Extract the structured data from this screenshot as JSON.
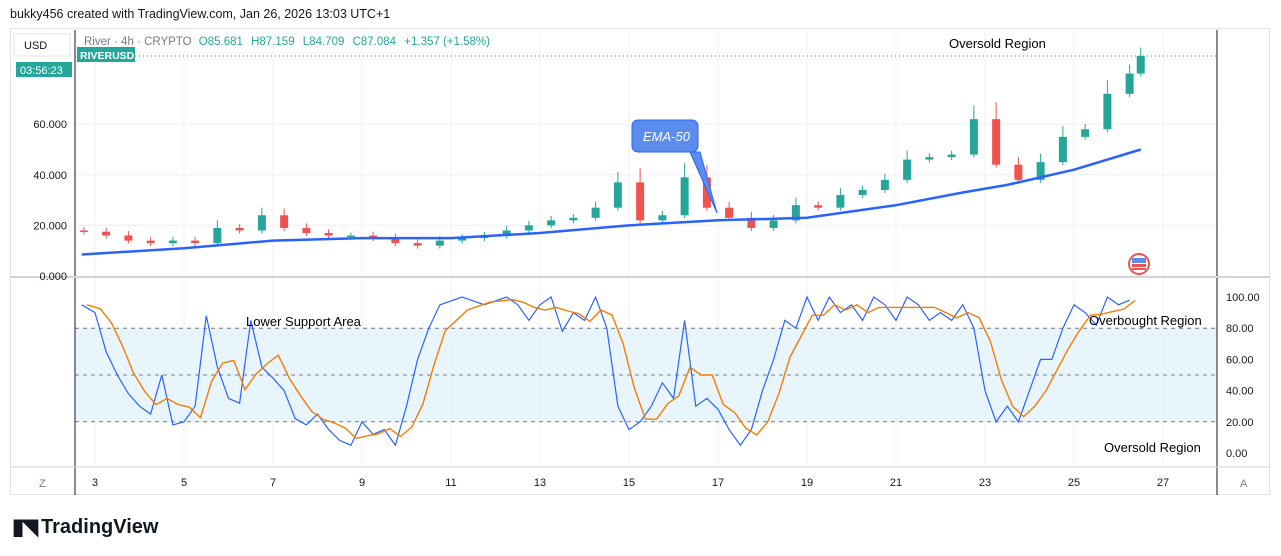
{
  "credit": "bukky456 created with TradingView.com, Jan 26, 2026 13:03 UTC+1",
  "currency": "USD",
  "symbol_badge": "RIVERUSD",
  "countdown": "03:56:23",
  "legend": {
    "name": "River · 4h · CRYPTO",
    "o": "O85.681",
    "h": "H87.159",
    "l": "L84.709",
    "c": "C87.084",
    "change": "+1.357 (+1.58%)"
  },
  "annotations": {
    "ema": "EMA-50",
    "top_right": "Oversold Region",
    "lower_support": "Lower Support Area",
    "overbought": "Overbought Region",
    "oversold": "Oversold Region"
  },
  "axis_buttons": {
    "left": "Z",
    "right": "A"
  },
  "brand": "TradingView",
  "colors": {
    "up": "#26a69a",
    "down": "#ef5350",
    "ema": "#2962ff",
    "k": "#2962ff",
    "d": "#f57c00",
    "band": "#e3f2fd"
  },
  "chart_data": [
    {
      "type": "candlestick",
      "price_ticks": [
        "0.000",
        "20.000",
        "40.000",
        "60.000"
      ],
      "ylim": [
        0,
        90
      ],
      "x_ticks": [
        "3",
        "5",
        "7",
        "9",
        "11",
        "13",
        "15",
        "17",
        "19",
        "21",
        "23",
        "25",
        "27"
      ],
      "candles_x": [
        2.75,
        3.25,
        3.75,
        4.25,
        4.75,
        5.25,
        5.75,
        6.25,
        6.75,
        7.25,
        7.75,
        8.25,
        8.75,
        9.25,
        9.75,
        10.25,
        10.75,
        11.25,
        11.75,
        12.25,
        12.75,
        13.25,
        13.75,
        14.25,
        14.75,
        15.25,
        15.75,
        16.25,
        16.75,
        17.25,
        17.75,
        18.25,
        18.75,
        19.25,
        19.75,
        20.25,
        20.75,
        21.25,
        21.75,
        22.25,
        22.75,
        23.25,
        23.75,
        24.25,
        24.75,
        25.25,
        25.75,
        26.25,
        26.5
      ],
      "close": [
        17.5,
        16,
        14,
        13,
        14,
        13,
        19,
        18,
        24,
        19,
        17,
        16,
        16,
        15,
        13,
        12,
        14,
        15,
        16,
        18,
        20,
        22,
        23,
        27,
        37,
        22,
        24,
        39,
        27,
        23,
        19,
        22,
        28,
        27,
        32,
        34,
        38,
        46,
        47,
        48,
        62,
        44,
        38,
        45,
        55,
        58,
        72,
        80,
        87
      ],
      "ema50": {
        "x": [
          2.7,
          5,
          7,
          9,
          11,
          13,
          15,
          17,
          19,
          21,
          22.5,
          23.5,
          25,
          26.5
        ],
        "y": [
          8.5,
          11,
          14,
          15,
          15,
          17,
          20,
          22,
          23,
          28,
          33,
          36,
          42,
          50
        ]
      }
    },
    {
      "type": "line",
      "name": "stochastic",
      "ylim": [
        0,
        100
      ],
      "ticks": [
        "0.00",
        "20.00",
        "40.00",
        "60.00",
        "80.00",
        "100.00"
      ],
      "bands": [
        20,
        50,
        80
      ],
      "k": {
        "x": [
          2.7,
          3,
          3.25,
          3.5,
          3.75,
          4,
          4.25,
          4.5,
          4.75,
          5,
          5.25,
          5.5,
          5.75,
          6,
          6.25,
          6.5,
          6.75,
          7,
          7.25,
          7.5,
          7.75,
          8,
          8.25,
          8.5,
          8.75,
          9,
          9.25,
          9.5,
          9.75,
          10,
          10.25,
          10.5,
          10.75,
          11.25,
          11.75,
          12.25,
          12.5,
          12.75,
          13,
          13.25,
          13.5,
          13.75,
          14,
          14.25,
          14.5,
          14.75,
          15,
          15.25,
          15.5,
          15.75,
          16,
          16.25,
          16.5,
          16.75,
          17,
          17.25,
          17.5,
          17.75,
          18,
          18.25,
          18.5,
          18.75,
          19,
          19.25,
          19.5,
          19.75,
          20,
          20.25,
          20.5,
          20.75,
          21,
          21.25,
          21.5,
          21.75,
          22,
          22.25,
          22.5,
          22.75,
          23,
          23.25,
          23.5,
          23.75,
          24,
          24.25,
          24.5,
          24.75,
          25,
          25.25,
          25.5,
          25.75,
          26,
          26.25
        ],
        "y": [
          95,
          90,
          65,
          50,
          38,
          30,
          25,
          50,
          18,
          20,
          30,
          88,
          55,
          35,
          32,
          85,
          55,
          48,
          40,
          22,
          18,
          25,
          15,
          8,
          5,
          20,
          12,
          15,
          5,
          30,
          60,
          80,
          95,
          100,
          95,
          100,
          95,
          85,
          95,
          100,
          78,
          90,
          85,
          100,
          80,
          30,
          15,
          20,
          30,
          45,
          35,
          85,
          30,
          35,
          28,
          15,
          5,
          15,
          40,
          60,
          85,
          80,
          100,
          85,
          100,
          90,
          95,
          85,
          100,
          95,
          85,
          100,
          95,
          85,
          90,
          85,
          95,
          80,
          40,
          20,
          30,
          20,
          40,
          60,
          60,
          80,
          95,
          90,
          82,
          100,
          95,
          98
        ]
      }
    }
  ]
}
